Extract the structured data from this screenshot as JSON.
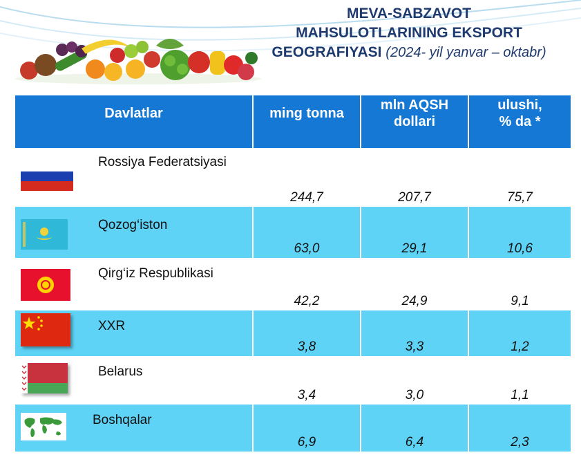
{
  "header": {
    "title_line1": "MEVA-SABZAVOT",
    "title_line2": "MAHSULOTLARINING EKSPORT",
    "title_line3": "GEOGRAFIYASI",
    "subtitle": "(2024- yil yanvar – oktabr)"
  },
  "table": {
    "headers": {
      "country": "Davlatlar",
      "tons": "ming tonna",
      "usd_line1": "mln AQSH",
      "usd_line2": "dollari",
      "share_line1": "ulushi,",
      "share_line2": "% da *"
    },
    "rows": [
      {
        "country": "Rossiya Federatsiyasi",
        "tons": "244,7",
        "usd": "207,7",
        "share": "75,7",
        "flag": "russia-flag"
      },
      {
        "country": "Qozog‘iston",
        "tons": "63,0",
        "usd": "29,1",
        "share": "10,6",
        "flag": "kazakhstan-flag"
      },
      {
        "country": "Qirg‘iz Respublikasi",
        "tons": "42,2",
        "usd": "24,9",
        "share": "9,1",
        "flag": "kyrgyzstan-flag"
      },
      {
        "country": "XXR",
        "tons": "3,8",
        "usd": "3,3",
        "share": "1,2",
        "flag": "china-flag"
      },
      {
        "country": "Belarus",
        "tons": "3,4",
        "usd": "3,0",
        "share": "1,1",
        "flag": "belarus-flag"
      },
      {
        "country": "Boshqalar",
        "tons": "6,9",
        "usd": "6,4",
        "share": "2,3",
        "flag": "world-map-icon"
      }
    ]
  },
  "colors": {
    "header_blue": "#1478d4",
    "row_cyan": "#5fd3f6",
    "title_navy": "#1f3a6e"
  }
}
